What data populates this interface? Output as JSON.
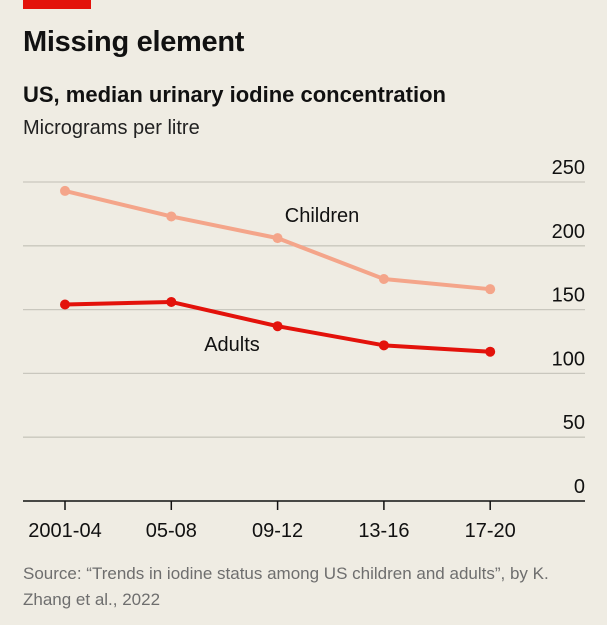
{
  "header": {
    "title": "Missing element",
    "subtitle": "US, median urinary iodine concentration",
    "units": "Micrograms per litre"
  },
  "source": "Source: “Trends in iodine status among US children and adults”, by K. Zhang et al., 2022",
  "colors": {
    "accent": "#e3120b",
    "background": "#efece3",
    "children": "#f4a58a",
    "adults": "#e3120b",
    "grid": "#c9c7be",
    "axis": "#111111"
  },
  "chart_data": {
    "type": "line",
    "categories": [
      "2001-04",
      "05-08",
      "09-12",
      "13-16",
      "17-20"
    ],
    "series": [
      {
        "name": "Children",
        "color_key": "children",
        "values": [
          243,
          223,
          206,
          174,
          166
        ]
      },
      {
        "name": "Adults",
        "color_key": "adults",
        "values": [
          154,
          156,
          137,
          122,
          117
        ]
      }
    ],
    "ylim": [
      0,
      250
    ],
    "yticks": [
      0,
      50,
      100,
      150,
      200,
      250
    ],
    "y_axis_side": "right",
    "grid": true,
    "legend": "inline labels"
  }
}
